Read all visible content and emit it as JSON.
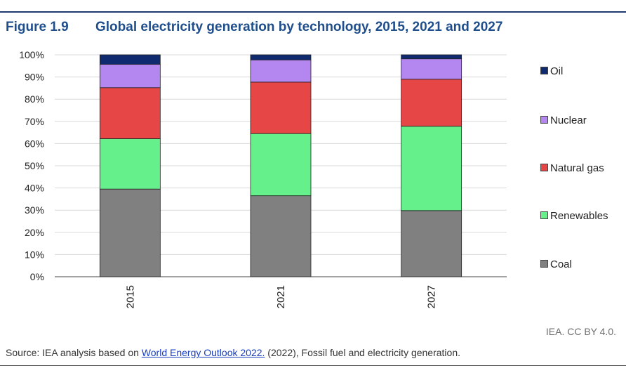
{
  "figure": {
    "number": "Figure 1.9",
    "title": "Global electricity generation by technology, 2015, 2021 and 2027"
  },
  "credit": "IEA. CC BY 4.0.",
  "source": {
    "prefix": "Source: IEA analysis based on ",
    "link_text": "World Energy Outlook 2022.",
    "suffix": " (2022), Fossil fuel and electricity generation."
  },
  "chart_data": {
    "type": "bar",
    "stacked": true,
    "categories": [
      "2015",
      "2021",
      "2027"
    ],
    "ylim": [
      0,
      100
    ],
    "yticks": [
      "0%",
      "10%",
      "20%",
      "30%",
      "40%",
      "50%",
      "60%",
      "70%",
      "80%",
      "90%",
      "100%"
    ],
    "grid": true,
    "legend_position": "right",
    "series": [
      {
        "name": "Coal",
        "color": "#808080",
        "values": [
          39.5,
          36.5,
          29.8
        ]
      },
      {
        "name": "Renewables",
        "color": "#66f08c",
        "values": [
          22.7,
          28.0,
          38.0
        ]
      },
      {
        "name": "Natural gas",
        "color": "#e64646",
        "values": [
          23.0,
          23.2,
          21.2
        ]
      },
      {
        "name": "Nuclear",
        "color": "#b487f0",
        "values": [
          10.5,
          10.0,
          9.2
        ]
      },
      {
        "name": "Oil",
        "color": "#0f2a6e",
        "values": [
          4.3,
          2.3,
          1.8
        ]
      }
    ]
  }
}
